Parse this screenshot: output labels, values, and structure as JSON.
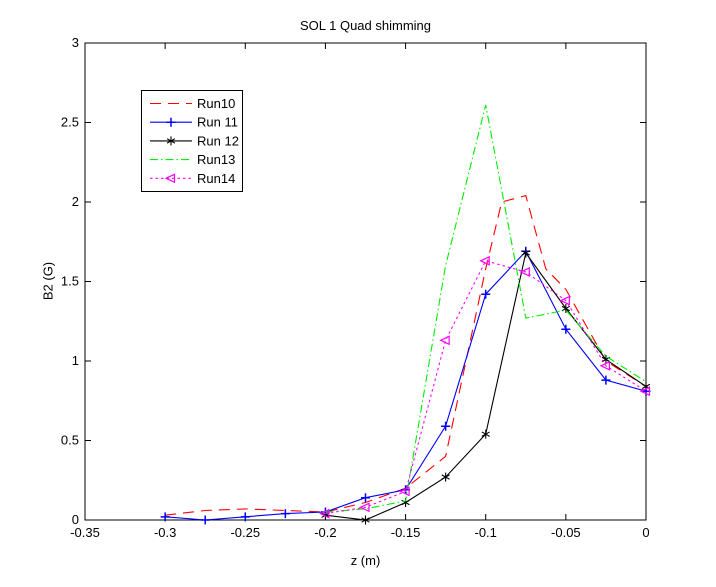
{
  "figure": {
    "title": "SOL 1 Quad shimming",
    "xlabel": "z (m)",
    "ylabel": "B2 (G)"
  },
  "chart_data": {
    "type": "line",
    "title": "SOL 1 Quad shimming",
    "xlabel": "z (m)",
    "ylabel": "B2 (G)",
    "xlim": [
      -0.35,
      0
    ],
    "ylim": [
      0,
      3
    ],
    "grid": false,
    "legend_position": "upper-left-inside",
    "xticks": {
      "values": [
        -0.35,
        -0.3,
        -0.25,
        -0.2,
        -0.15,
        -0.1,
        -0.05,
        0
      ],
      "labels": [
        "-0.35",
        "-0.3",
        "-0.25",
        "-0.2",
        "-0.15",
        "-0.1",
        "-0.05",
        "0"
      ]
    },
    "yticks": {
      "values": [
        0,
        0.5,
        1,
        1.5,
        2,
        2.5,
        3
      ],
      "labels": [
        "0",
        "0.5",
        "1",
        "1.5",
        "2",
        "2.5",
        "3"
      ]
    },
    "series": [
      {
        "name": "Run10",
        "color": "#ff0000",
        "line": "dashed",
        "marker": "none",
        "x": [
          -0.3,
          -0.275,
          -0.25,
          -0.225,
          -0.2,
          -0.175,
          -0.15,
          -0.125,
          -0.1,
          -0.09,
          -0.075,
          -0.0625,
          -0.05,
          -0.025,
          0
        ],
        "y": [
          0.03,
          0.06,
          0.07,
          0.06,
          0.05,
          0.11,
          0.2,
          0.4,
          1.58,
          2.0,
          2.04,
          1.58,
          1.45,
          1.0,
          0.84
        ]
      },
      {
        "name": "Run 11",
        "color": "#0000ff",
        "line": "solid",
        "marker": "plus",
        "x": [
          -0.3,
          -0.275,
          -0.25,
          -0.225,
          -0.2,
          -0.175,
          -0.15,
          -0.125,
          -0.1,
          -0.075,
          -0.05,
          -0.025,
          0
        ],
        "y": [
          0.02,
          0.0,
          0.02,
          0.04,
          0.05,
          0.14,
          0.19,
          0.59,
          1.42,
          1.69,
          1.2,
          0.88,
          0.81
        ]
      },
      {
        "name": "Run 12",
        "color": "#000000",
        "line": "solid",
        "marker": "asterisk",
        "x": [
          -0.2,
          -0.175,
          -0.15,
          -0.125,
          -0.1,
          -0.075,
          -0.05,
          -0.025,
          0
        ],
        "y": [
          0.03,
          0.0,
          0.11,
          0.27,
          0.54,
          1.68,
          1.33,
          1.01,
          0.84
        ]
      },
      {
        "name": "Run13",
        "color": "#00ee00",
        "line": "dashdot",
        "marker": "none",
        "x": [
          -0.2,
          -0.175,
          -0.15,
          -0.125,
          -0.1,
          -0.075,
          -0.05,
          -0.025,
          0
        ],
        "y": [
          0.05,
          0.07,
          0.12,
          1.6,
          2.61,
          1.27,
          1.32,
          1.03,
          0.87
        ]
      },
      {
        "name": "Run14",
        "color": "#ff00ff",
        "line": "dotted",
        "marker": "triangle-left",
        "x": [
          -0.2,
          -0.175,
          -0.15,
          -0.125,
          -0.1,
          -0.075,
          -0.05,
          -0.025,
          0
        ],
        "y": [
          0.04,
          0.08,
          0.18,
          1.13,
          1.63,
          1.56,
          1.38,
          0.97,
          0.81
        ]
      }
    ]
  }
}
